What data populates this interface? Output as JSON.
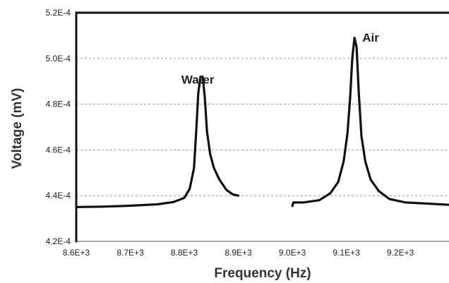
{
  "chart_data": {
    "type": "line",
    "title": "",
    "xlabel": "Frequency (Hz)",
    "ylabel": "Voltage (mV)",
    "xlim": [
      8600,
      9290
    ],
    "ylim": [
      0.00042,
      0.00052
    ],
    "x_ticks": [
      8600,
      8700,
      8800,
      8900,
      9000,
      9100,
      9200
    ],
    "x_tick_labels": [
      "8.6E+3",
      "8.7E+3",
      "8.8E+3",
      "8.9E+3",
      "9.0E+3",
      "9.1E+3",
      "9.2E+3"
    ],
    "y_ticks": [
      0.00042,
      0.00044,
      0.00046,
      0.00048,
      0.0005,
      0.00052
    ],
    "y_tick_labels": [
      "4.2E-4",
      "4.4E-4",
      "4.6E-4",
      "4.8E-4",
      "5.0E-4",
      "5.2E-4"
    ],
    "grid": "horizontal-dashed",
    "legend": "none",
    "line_color": "#111111",
    "series": [
      {
        "name": "Water",
        "x": [
          8600,
          8650,
          8700,
          8750,
          8780,
          8800,
          8810,
          8818,
          8822,
          8826,
          8830,
          8834,
          8838,
          8842,
          8848,
          8855,
          8865,
          8878,
          8890,
          8900
        ],
        "y": [
          0.000435,
          0.0004352,
          0.0004356,
          0.0004362,
          0.0004372,
          0.000439,
          0.000443,
          0.000452,
          0.000468,
          0.000485,
          0.000492,
          0.000492,
          0.000483,
          0.000468,
          0.000458,
          0.000452,
          0.000447,
          0.0004425,
          0.0004405,
          0.00044
        ]
      },
      {
        "name": "Air",
        "x": [
          9000,
          9002,
          9020,
          9050,
          9070,
          9085,
          9095,
          9102,
          9107,
          9111,
          9115,
          9119,
          9123,
          9128,
          9135,
          9145,
          9160,
          9180,
          9210,
          9250,
          9290
        ],
        "y": [
          0.0004355,
          0.000437,
          0.000437,
          0.000438,
          0.000441,
          0.000446,
          0.000455,
          0.000467,
          0.000483,
          0.0005,
          0.000509,
          0.000505,
          0.000485,
          0.000466,
          0.000455,
          0.000447,
          0.000442,
          0.0004385,
          0.000437,
          0.0004365,
          0.000436
        ]
      }
    ],
    "annotations": [
      {
        "text": "Water",
        "x": 8825,
        "y": 0.000489
      },
      {
        "text": "Air",
        "x": 9145,
        "y": 0.0005073
      }
    ]
  }
}
